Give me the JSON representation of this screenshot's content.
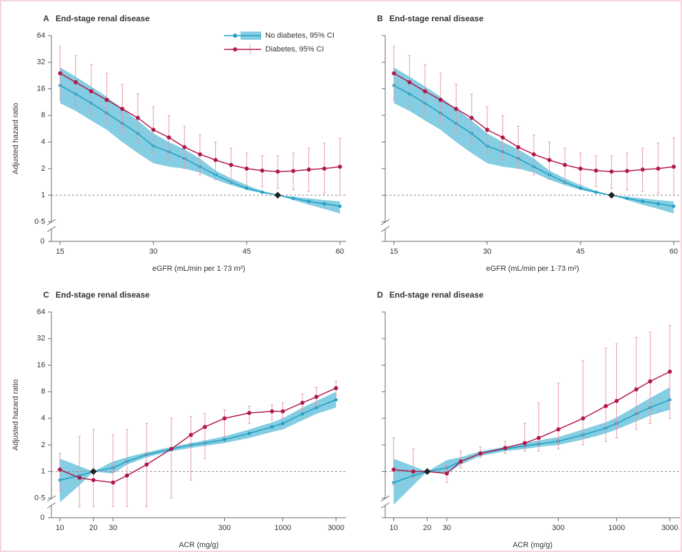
{
  "chart_data": [
    {
      "type": "line",
      "panel": "A",
      "title": "End-stage renal disease",
      "xlabel": "eGFR (mL/min per 1·73 m²)",
      "ylabel": "Adjusted hazard ratio",
      "xscale": "linear",
      "yscale": "log",
      "legend": "top",
      "x": [
        15,
        17.5,
        20,
        22.5,
        25,
        27.5,
        30,
        32.5,
        35,
        37.5,
        40,
        42.5,
        45,
        47.5,
        50,
        52.5,
        55,
        57.5,
        60
      ],
      "xlim": [
        13.6,
        61
      ],
      "xticks": [
        15,
        30,
        45,
        60
      ],
      "ylim": [
        0.3,
        64
      ],
      "yticks": [
        {
          "value": 0.5,
          "label": "0·5"
        },
        1,
        2,
        4,
        8,
        16,
        32,
        64
      ],
      "ybreak_label": "0",
      "reference_line": 1,
      "reference_point": {
        "x": 50,
        "y": 1
      },
      "series": [
        {
          "name": "No diabetes, 95% CI",
          "color": "#1c9fc2",
          "ci_color": "#84cde2",
          "ci_style": "band",
          "values": [
            17.5,
            14,
            11,
            8.5,
            6.5,
            5,
            3.6,
            3.1,
            2.6,
            2.1,
            1.7,
            1.4,
            1.2,
            1.08,
            1,
            0.92,
            0.85,
            0.8,
            0.75
          ],
          "ci_lower": [
            11,
            9,
            7,
            5.5,
            4,
            3,
            2.3,
            2.1,
            2,
            1.8,
            1.5,
            1.3,
            1.15,
            1.05,
            1,
            0.88,
            0.78,
            0.7,
            0.62
          ],
          "ci_upper": [
            28,
            22,
            17,
            13,
            9.5,
            7,
            5,
            4,
            3.3,
            2.6,
            1.9,
            1.55,
            1.3,
            1.12,
            1,
            0.96,
            0.92,
            0.88,
            0.85
          ]
        },
        {
          "name": "Diabetes, 95% CI",
          "color": "#b3174a",
          "ci_color": "#e89aab",
          "ci_style": "errorbar",
          "values": [
            24,
            19,
            15,
            12,
            9.5,
            7.5,
            5.5,
            4.5,
            3.5,
            2.9,
            2.5,
            2.2,
            2.0,
            1.9,
            1.85,
            1.88,
            1.95,
            2.0,
            2.1
          ],
          "ci_lower": [
            12,
            10,
            8,
            6.5,
            5,
            4,
            3,
            2.5,
            2,
            1.7,
            1.5,
            1.4,
            1.3,
            1.25,
            1.2,
            1.15,
            1.1,
            1.05,
            1.0
          ],
          "ci_upper": [
            48,
            38,
            30,
            24,
            18,
            14,
            10,
            8,
            6,
            4.8,
            4,
            3.4,
            3,
            2.8,
            2.8,
            3,
            3.4,
            3.9,
            4.4
          ]
        }
      ]
    },
    {
      "type": "line",
      "panel": "B",
      "title": "End-stage renal disease",
      "xlabel": "eGFR (mL/min per 1·73 m²)",
      "xscale": "linear",
      "yscale": "log",
      "x": [
        15,
        17.5,
        20,
        22.5,
        25,
        27.5,
        30,
        32.5,
        35,
        37.5,
        40,
        42.5,
        45,
        47.5,
        50,
        52.5,
        55,
        57.5,
        60
      ],
      "xlim": [
        13.6,
        61
      ],
      "xticks": [
        15,
        30,
        45,
        60
      ],
      "ylim": [
        0.3,
        64
      ],
      "reference_line": 1,
      "reference_point": {
        "x": 50,
        "y": 1
      },
      "series": [
        {
          "color": "#1c9fc2",
          "ci_color": "#84cde2",
          "ci_style": "band",
          "values": [
            17.5,
            14,
            11,
            8.5,
            6.5,
            5,
            3.6,
            3.1,
            2.6,
            2.1,
            1.7,
            1.4,
            1.2,
            1.08,
            1,
            0.92,
            0.85,
            0.8,
            0.75
          ],
          "ci_lower": [
            11,
            9,
            7,
            5.5,
            4,
            3,
            2.3,
            2.1,
            2,
            1.8,
            1.5,
            1.3,
            1.15,
            1.05,
            1,
            0.88,
            0.78,
            0.7,
            0.62
          ],
          "ci_upper": [
            28,
            22,
            17,
            13,
            9.5,
            7,
            5,
            4,
            3.3,
            2.6,
            1.9,
            1.55,
            1.3,
            1.12,
            1,
            0.96,
            0.92,
            0.88,
            0.85
          ]
        },
        {
          "color": "#b3174a",
          "ci_color": "#e89aab",
          "ci_style": "errorbar",
          "values": [
            24,
            19,
            15,
            12,
            9.5,
            7.5,
            5.5,
            4.5,
            3.5,
            2.9,
            2.5,
            2.2,
            2.0,
            1.9,
            1.85,
            1.88,
            1.95,
            2.0,
            2.1
          ],
          "ci_lower": [
            12,
            10,
            8,
            6.5,
            5,
            4,
            3,
            2.5,
            2,
            1.7,
            1.5,
            1.4,
            1.3,
            1.25,
            1.2,
            1.15,
            1.1,
            1.05,
            1.0
          ],
          "ci_upper": [
            48,
            38,
            30,
            24,
            18,
            14,
            10,
            8,
            6,
            4.8,
            4,
            3.4,
            3,
            2.8,
            2.8,
            3,
            3.4,
            3.9,
            4.4
          ]
        }
      ]
    },
    {
      "type": "line",
      "panel": "C",
      "title": "End-stage renal disease",
      "xlabel": "ACR (mg/g)",
      "ylabel": "Adjusted hazard ratio",
      "xscale": "log",
      "yscale": "log",
      "x": [
        10,
        15,
        20,
        30,
        40,
        60,
        100,
        150,
        200,
        300,
        500,
        800,
        1000,
        1500,
        2000,
        3000
      ],
      "xlim": [
        8.4,
        3700
      ],
      "xticks": [
        10,
        20,
        30,
        300,
        1000,
        3000
      ],
      "ylim": [
        0.3,
        64
      ],
      "yticks": [
        {
          "value": 0.5,
          "label": "0·5"
        },
        1,
        2,
        4,
        8,
        16,
        32,
        64
      ],
      "ybreak_label": "0",
      "reference_line": 1,
      "reference_point": {
        "x": 20,
        "y": 1
      },
      "series": [
        {
          "color": "#1c9fc2",
          "ci_color": "#84cde2",
          "ci_style": "band",
          "values": [
            0.8,
            0.9,
            1,
            1.1,
            1.3,
            1.55,
            1.8,
            2.0,
            2.1,
            2.3,
            2.7,
            3.2,
            3.5,
            4.5,
            5.3,
            6.5
          ],
          "ci_lower": [
            0.45,
            0.7,
            1,
            0.95,
            1.2,
            1.45,
            1.7,
            1.85,
            1.95,
            2.1,
            2.4,
            2.8,
            3.0,
            3.8,
            4.5,
            5.3
          ],
          "ci_upper": [
            1.4,
            1.15,
            1,
            1.3,
            1.45,
            1.65,
            1.9,
            2.1,
            2.25,
            2.5,
            3.0,
            3.6,
            4.0,
            5.3,
            6.3,
            8.0
          ]
        },
        {
          "color": "#b3174a",
          "ci_color": "#e89aab",
          "ci_style": "errorbar",
          "values": [
            1.05,
            0.85,
            0.8,
            0.75,
            0.9,
            1.2,
            1.8,
            2.6,
            3.2,
            4,
            4.6,
            4.8,
            4.8,
            6,
            7,
            8.8
          ],
          "ci_lower": [
            0.6,
            0.4,
            0.4,
            0.4,
            0.4,
            0.4,
            0.5,
            0.8,
            1.4,
            2.5,
            3.5,
            3.8,
            4,
            4.8,
            5.5,
            7.2
          ],
          "ci_upper": [
            1.6,
            2.5,
            3,
            2.6,
            3,
            3.5,
            4,
            4.2,
            4.5,
            5,
            5.5,
            5.7,
            6,
            7.5,
            9,
            10.5
          ]
        }
      ]
    },
    {
      "type": "line",
      "panel": "D",
      "title": "End-stage renal disease",
      "xlabel": "ACR (mg/g)",
      "xscale": "log",
      "yscale": "log",
      "x": [
        10,
        15,
        20,
        30,
        40,
        60,
        100,
        150,
        200,
        300,
        500,
        800,
        1000,
        1500,
        2000,
        3000
      ],
      "xlim": [
        8.4,
        3700
      ],
      "xticks": [
        10,
        20,
        30,
        300,
        1000,
        3000
      ],
      "ylim": [
        0.3,
        64
      ],
      "reference_line": 1,
      "reference_point": {
        "x": 20,
        "y": 1
      },
      "series": [
        {
          "color": "#1c9fc2",
          "ci_color": "#84cde2",
          "ci_style": "band",
          "values": [
            0.75,
            0.9,
            1,
            1.1,
            1.3,
            1.6,
            1.8,
            1.95,
            2.05,
            2.2,
            2.6,
            3.1,
            3.5,
            4.5,
            5.3,
            6.5
          ],
          "ci_lower": [
            0.42,
            0.7,
            1,
            0.95,
            1.2,
            1.5,
            1.7,
            1.8,
            1.9,
            2.0,
            2.3,
            2.7,
            3.0,
            3.7,
            4.3,
            5.0
          ],
          "ci_upper": [
            1.4,
            1.15,
            1,
            1.35,
            1.45,
            1.7,
            1.9,
            2.1,
            2.25,
            2.45,
            3.0,
            3.6,
            4.1,
            5.5,
            6.8,
            9.0
          ]
        },
        {
          "color": "#b3174a",
          "ci_color": "#e89aab",
          "ci_style": "errorbar",
          "values": [
            1.05,
            1.0,
            1,
            0.95,
            1.3,
            1.6,
            1.85,
            2.1,
            2.4,
            3,
            4,
            5.5,
            6.3,
            8.5,
            10.5,
            13.5
          ],
          "ci_lower": [
            0.7,
            0.85,
            1,
            0.75,
            1.1,
            1.45,
            1.6,
            1.7,
            1.7,
            1.8,
            2,
            2.2,
            2.4,
            3,
            3.5,
            4.0
          ],
          "ci_upper": [
            2.4,
            1.8,
            1,
            1.2,
            1.7,
            1.9,
            2.2,
            3.5,
            6,
            10,
            18,
            25,
            28,
            33,
            38,
            45
          ]
        }
      ]
    }
  ]
}
